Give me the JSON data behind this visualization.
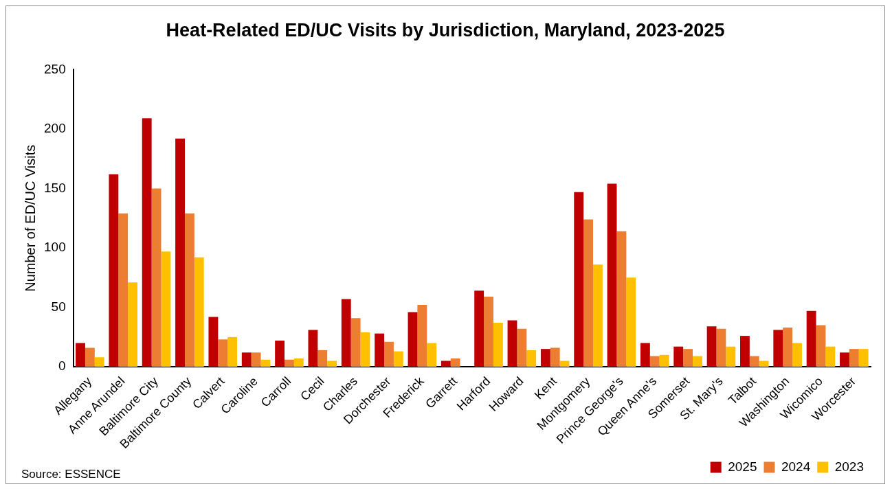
{
  "chart_data": {
    "type": "bar",
    "title": "Heat-Related ED/UC Visits by Jurisdiction, Maryland, 2023-2025",
    "ylabel": "Number of ED/UC Visits",
    "categories": [
      "Allegany",
      "Anne Arundel",
      "Baltimore City",
      "Baltimore County",
      "Calvert",
      "Caroline",
      "Carroll",
      "Cecil",
      "Charles",
      "Dorchester",
      "Frederick",
      "Garrett",
      "Harford",
      "Howard",
      "Kent",
      "Montgomery",
      "Prince George's",
      "Queen Anne's",
      "Somerset",
      "St. Mary's",
      "Talbot",
      "Washington",
      "Wicomico",
      "Worcester"
    ],
    "series": [
      {
        "name": "2025",
        "color": "#c00000",
        "values": [
          20,
          162,
          209,
          192,
          42,
          12,
          22,
          31,
          57,
          28,
          46,
          5,
          64,
          39,
          15,
          147,
          154,
          20,
          17,
          34,
          26,
          31,
          47,
          12
        ]
      },
      {
        "name": "2024",
        "color": "#ed7d31",
        "values": [
          16,
          129,
          150,
          129,
          23,
          12,
          6,
          14,
          41,
          21,
          52,
          7,
          59,
          32,
          16,
          124,
          114,
          9,
          15,
          32,
          9,
          33,
          35,
          15
        ]
      },
      {
        "name": "2023",
        "color": "#ffc000",
        "values": [
          8,
          71,
          97,
          92,
          25,
          6,
          7,
          5,
          29,
          13,
          20,
          0,
          37,
          14,
          5,
          86,
          75,
          10,
          9,
          17,
          5,
          20,
          17,
          15
        ]
      }
    ],
    "ylim": [
      0,
      250
    ],
    "yticks": [
      0,
      50,
      100,
      150,
      200,
      250
    ],
    "grid": false,
    "legend": "bottom right",
    "annotations": [
      "Source: ESSENCE"
    ]
  }
}
